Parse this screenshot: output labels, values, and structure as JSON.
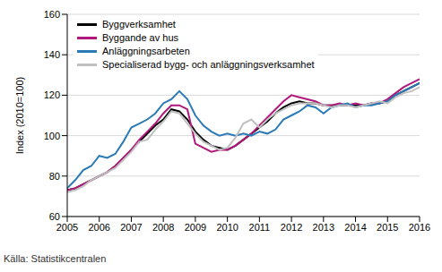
{
  "chart_data": {
    "type": "line",
    "y_label": "Index (2010=100)",
    "source": "Källa: Statistikcentralen",
    "x": [
      2005,
      2005.25,
      2005.5,
      2005.75,
      2006,
      2006.25,
      2006.5,
      2006.75,
      2007,
      2007.25,
      2007.5,
      2007.75,
      2008,
      2008.25,
      2008.5,
      2008.75,
      2009,
      2009.25,
      2009.5,
      2009.75,
      2010,
      2010.25,
      2010.5,
      2010.75,
      2011,
      2011.25,
      2011.5,
      2011.75,
      2012,
      2012.25,
      2012.5,
      2012.75,
      2013,
      2013.25,
      2013.5,
      2013.75,
      2014,
      2014.25,
      2014.5,
      2014.75,
      2015,
      2015.25,
      2015.5,
      2015.75,
      2016
    ],
    "series": [
      {
        "name": "Byggverksamhet",
        "color": "#000000",
        "values": [
          73,
          74,
          76,
          78,
          80,
          82,
          85,
          89,
          93,
          97,
          101,
          105,
          108,
          113,
          112,
          108,
          102,
          98,
          95,
          94,
          93,
          95,
          98,
          101,
          104,
          107,
          111,
          114,
          116,
          117,
          116,
          116,
          115,
          115,
          115,
          115,
          115,
          115,
          116,
          116,
          117,
          120,
          122,
          124,
          126
        ]
      },
      {
        "name": "Byggande av hus",
        "color": "#b0187b",
        "values": [
          73,
          74,
          76,
          78,
          80,
          82,
          85,
          89,
          93,
          98,
          102,
          106,
          111,
          115,
          115,
          113,
          96,
          94,
          92,
          93,
          93,
          95,
          98,
          101,
          105,
          109,
          113,
          117,
          120,
          119,
          118,
          117,
          115,
          115,
          116,
          115,
          116,
          115,
          116,
          116,
          118,
          121,
          124,
          126,
          128
        ]
      },
      {
        "name": "Anläggningsarbeten",
        "color": "#2a7ab8",
        "values": [
          74,
          78,
          83,
          85,
          90,
          89,
          91,
          97,
          104,
          106,
          108,
          111,
          116,
          118,
          122,
          118,
          110,
          105,
          102,
          100,
          101,
          100,
          101,
          100,
          102,
          101,
          103,
          108,
          110,
          112,
          115,
          114,
          111,
          114,
          115,
          116,
          114,
          115,
          115,
          116,
          117,
          120,
          122,
          124,
          126
        ]
      },
      {
        "name": "Specialiserad bygg- och anläggningsverksamhet",
        "color": "#c0c0c0",
        "values": [
          72,
          73,
          75,
          78,
          80,
          82,
          84,
          88,
          92,
          97,
          98,
          103,
          107,
          112,
          111,
          106,
          101,
          97,
          95,
          93,
          94,
          99,
          106,
          108,
          104,
          108,
          111,
          113,
          115,
          116,
          116,
          116,
          115,
          114,
          115,
          115,
          114,
          115,
          116,
          117,
          116,
          119,
          121,
          122,
          124
        ]
      }
    ],
    "xlim": [
      2005,
      2016
    ],
    "xticks": [
      2005,
      2006,
      2007,
      2008,
      2009,
      2010,
      2011,
      2012,
      2013,
      2014,
      2015,
      2016
    ],
    "ylim": [
      60,
      160
    ],
    "yticks": [
      60,
      80,
      100,
      120,
      140,
      160
    ],
    "grid": true,
    "legend": "upper left"
  }
}
